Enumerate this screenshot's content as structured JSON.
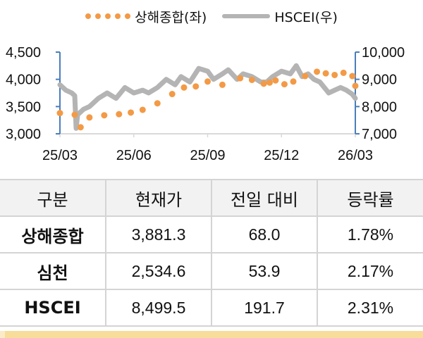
{
  "legend": {
    "series1_label": "상해종합(좌)",
    "series2_label": "HSCEI(우)"
  },
  "colors": {
    "shanghai": "#f39a46",
    "hscei": "#b4b4b4",
    "axis": "#4a7ebb",
    "grid": "#d9d9d9",
    "header_bg": "#f2f2f2",
    "footer_band": "#f7dc9a"
  },
  "chart_data": {
    "type": "line",
    "title": "",
    "xlabel": "",
    "ylabel_left": "상해종합",
    "ylabel_right": "HSCEI",
    "x_tick_labels": [
      "25/03",
      "25/06",
      "25/09",
      "25/12",
      "26/03"
    ],
    "left_axis": {
      "ylim": [
        3000,
        4500
      ],
      "ticks": [
        "4,500",
        "4,000",
        "3,500",
        "3,000"
      ]
    },
    "right_axis": {
      "ylim": [
        7000,
        10000
      ],
      "ticks": [
        "10,000",
        "9,000",
        "8,000",
        "7,000"
      ]
    },
    "grid": false,
    "legend_position": "top",
    "series": [
      {
        "name": "상해종합(좌)",
        "axis": "left",
        "style": "dotted",
        "x": [
          0,
          0.05,
          0.07,
          0.1,
          0.15,
          0.2,
          0.24,
          0.28,
          0.33,
          0.38,
          0.42,
          0.46,
          0.5,
          0.55,
          0.61,
          0.65,
          0.69,
          0.71,
          0.73,
          0.76,
          0.79,
          0.83,
          0.87,
          0.9,
          0.93,
          0.96,
          0.99,
          1.0
        ],
        "values": [
          3380,
          3350,
          3120,
          3300,
          3340,
          3360,
          3390,
          3440,
          3560,
          3730,
          3850,
          3870,
          3960,
          3900,
          4020,
          3990,
          3920,
          3940,
          3980,
          3910,
          3960,
          4060,
          4140,
          4110,
          4080,
          4120,
          4060,
          3880
        ]
      },
      {
        "name": "HSCEI(우)",
        "axis": "right",
        "style": "line",
        "x": [
          0,
          0.02,
          0.04,
          0.05,
          0.055,
          0.06,
          0.08,
          0.1,
          0.13,
          0.16,
          0.19,
          0.22,
          0.25,
          0.28,
          0.3,
          0.33,
          0.36,
          0.39,
          0.41,
          0.44,
          0.47,
          0.5,
          0.52,
          0.55,
          0.57,
          0.6,
          0.62,
          0.65,
          0.68,
          0.7,
          0.72,
          0.75,
          0.78,
          0.8,
          0.82,
          0.84,
          0.86,
          0.88,
          0.91,
          0.93,
          0.95,
          0.97,
          0.99,
          1.0
        ],
        "values": [
          8800,
          8600,
          8500,
          8400,
          7200,
          7700,
          7900,
          8000,
          8300,
          8500,
          8300,
          8700,
          8500,
          8600,
          8500,
          8700,
          9000,
          8800,
          9100,
          8900,
          9400,
          9300,
          9000,
          9200,
          9350,
          9000,
          9200,
          9100,
          8900,
          8900,
          9100,
          9300,
          9200,
          9500,
          9100,
          9200,
          9000,
          8900,
          8500,
          8600,
          8700,
          8600,
          8450,
          8300
        ]
      }
    ]
  },
  "table": {
    "headers": [
      "구분",
      "현재가",
      "전일 대비",
      "등락률"
    ],
    "rows": [
      {
        "name": "상해종합",
        "price": "3,881.3",
        "change": "68.0",
        "rate": "1.78%"
      },
      {
        "name": "심천",
        "price": "2,534.6",
        "change": "53.9",
        "rate": "2.17%"
      },
      {
        "name": "HSCEI",
        "price": "8,499.5",
        "change": "191.7",
        "rate": "2.31%"
      }
    ]
  }
}
